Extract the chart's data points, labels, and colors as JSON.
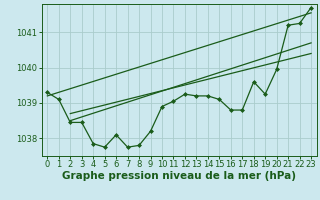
{
  "bg_color": "#cce8ee",
  "grid_color": "#aacccc",
  "line_color": "#1a5c1a",
  "marker_color": "#1a5c1a",
  "xlabel": "Graphe pression niveau de la mer (hPa)",
  "xlabel_fontsize": 7.5,
  "tick_fontsize": 6.0,
  "ylim": [
    1037.5,
    1041.8
  ],
  "yticks": [
    1038,
    1039,
    1040,
    1041
  ],
  "xlim": [
    -0.5,
    23.5
  ],
  "xticks": [
    0,
    1,
    2,
    3,
    4,
    5,
    6,
    7,
    8,
    9,
    10,
    11,
    12,
    13,
    14,
    15,
    16,
    17,
    18,
    19,
    20,
    21,
    22,
    23
  ],
  "main_data": [
    1039.3,
    1039.1,
    1038.45,
    1038.45,
    1037.85,
    1037.75,
    1038.1,
    1037.75,
    1037.8,
    1038.2,
    1038.9,
    1039.05,
    1039.25,
    1039.2,
    1039.2,
    1039.1,
    1038.8,
    1038.8,
    1039.6,
    1039.25,
    1039.95,
    1041.2,
    1041.25,
    1041.7
  ],
  "trend1_x": [
    0,
    23
  ],
  "trend1_y": [
    1039.2,
    1041.55
  ],
  "trend2_x": [
    2,
    23
  ],
  "trend2_y": [
    1038.5,
    1040.7
  ],
  "trend3_x": [
    2,
    23
  ],
  "trend3_y": [
    1038.7,
    1040.4
  ]
}
